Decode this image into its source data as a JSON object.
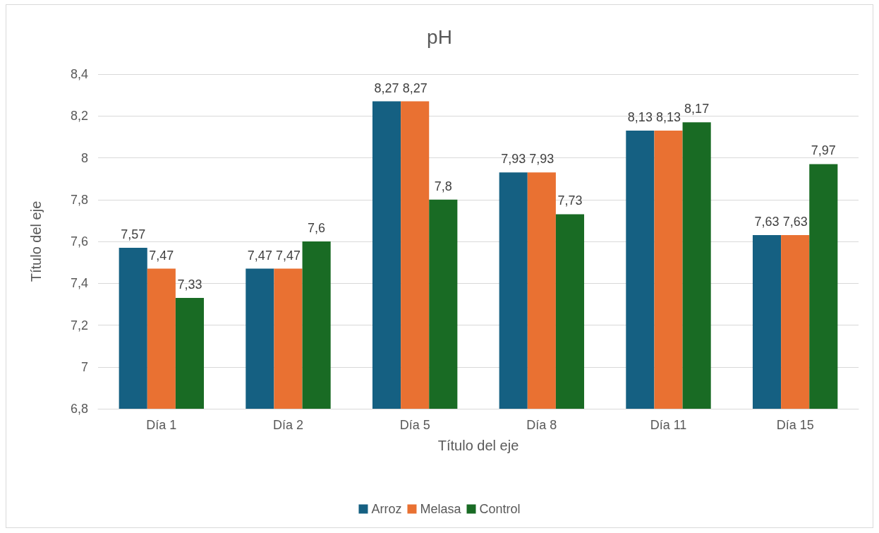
{
  "chart_data": {
    "type": "bar",
    "title": "pH",
    "xlabel": "Título del eje",
    "ylabel": "Título del eje",
    "categories": [
      "Día 1",
      "Día 2",
      "Día 5",
      "Día 8",
      "Día 11",
      "Día 15"
    ],
    "series": [
      {
        "name": "Arroz",
        "color": "#156082",
        "values": [
          7.57,
          7.47,
          8.27,
          7.93,
          8.13,
          7.63
        ],
        "value_labels": [
          "7,57",
          "7,47",
          "8,27",
          "7,93",
          "8,13",
          "7,63"
        ]
      },
      {
        "name": "Melasa",
        "color": "#e97132",
        "values": [
          7.47,
          7.47,
          8.27,
          7.93,
          8.13,
          7.63
        ],
        "value_labels": [
          "7,47",
          "7,47",
          "8,27",
          "7,93",
          "8,13",
          "7,63"
        ]
      },
      {
        "name": "Control",
        "color": "#196b24",
        "values": [
          7.33,
          7.6,
          7.8,
          7.73,
          8.17,
          7.97
        ],
        "value_labels": [
          "7,33",
          "7,6",
          "7,8",
          "7,73",
          "8,17",
          "7,97"
        ]
      }
    ],
    "ylim": [
      6.8,
      8.4
    ],
    "yticks": [
      {
        "value": 6.8,
        "label": "6,8"
      },
      {
        "value": 7,
        "label": "7"
      },
      {
        "value": 7.2,
        "label": "7,2"
      },
      {
        "value": 7.4,
        "label": "7,4"
      },
      {
        "value": 7.6,
        "label": "7,6"
      },
      {
        "value": 7.8,
        "label": "7,8"
      },
      {
        "value": 8,
        "label": "8"
      },
      {
        "value": 8.2,
        "label": "8,2"
      },
      {
        "value": 8.4,
        "label": "8,4"
      }
    ],
    "grid": "y",
    "legend": "bottom"
  }
}
